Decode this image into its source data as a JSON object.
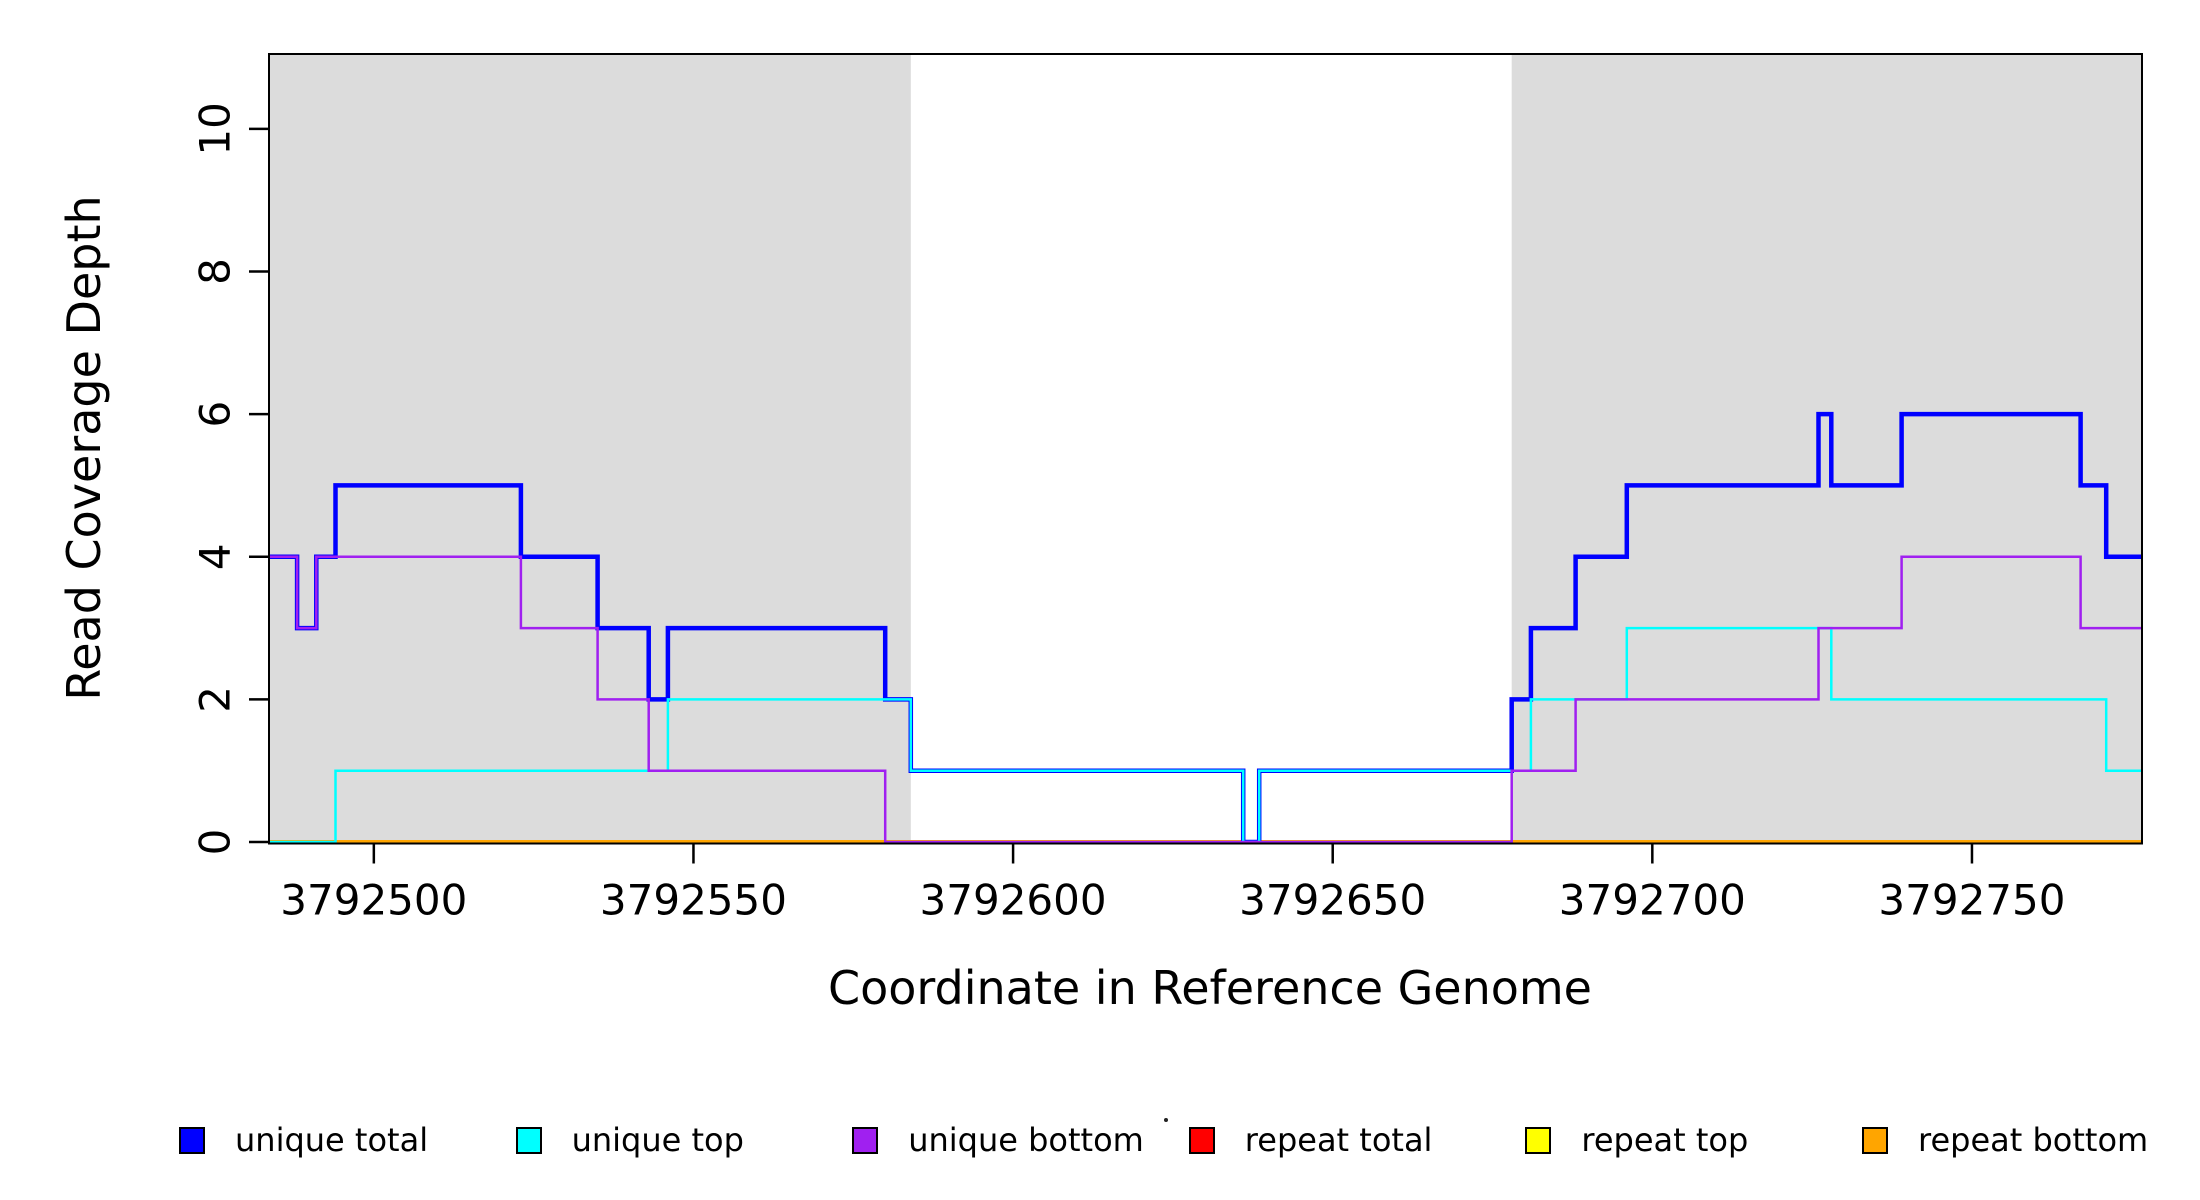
{
  "chart_data": {
    "type": "line",
    "subtype": "step-post",
    "title": "",
    "xlabel": "Coordinate in Reference Genome",
    "ylabel": "Read Coverage Depth",
    "xlim": [
      3792483.6,
      3792776.6
    ],
    "ylim": [
      0,
      11.05
    ],
    "x_ticks": [
      3792500,
      3792550,
      3792600,
      3792650,
      3792700,
      3792750
    ],
    "y_ticks": [
      0,
      2,
      4,
      6,
      8,
      10
    ],
    "grid": false,
    "background": "#ffffff",
    "shaded_region_color": "#dcdcdc",
    "shaded_regions": [
      {
        "x0": 3792483.6,
        "x1": 3792584.0
      },
      {
        "x0": 3792678.0,
        "x1": 3792776.6
      }
    ],
    "series": [
      {
        "name": "repeat total",
        "color": "#ff0000",
        "width": 4,
        "zorder": 1,
        "points": [
          [
            3792483.6,
            0
          ]
        ]
      },
      {
        "name": "repeat top",
        "color": "#ffff00",
        "width": 4,
        "zorder": 2,
        "points": [
          [
            3792483.6,
            0
          ]
        ]
      },
      {
        "name": "repeat bottom",
        "color": "#ffa500",
        "width": 4,
        "zorder": 3,
        "points": [
          [
            3792483.6,
            0
          ]
        ]
      },
      {
        "name": "unique total",
        "color": "#0000ff",
        "width": 4.5,
        "zorder": 4,
        "points": [
          [
            3792483.6,
            4
          ],
          [
            3792488,
            3
          ],
          [
            3792491,
            4
          ],
          [
            3792494,
            5
          ],
          [
            3792523,
            4
          ],
          [
            3792535,
            3
          ],
          [
            3792543,
            2
          ],
          [
            3792546,
            3
          ],
          [
            3792580,
            2
          ],
          [
            3792584,
            1
          ],
          [
            3792636,
            0
          ],
          [
            3792638.5,
            1
          ],
          [
            3792678,
            2
          ],
          [
            3792681,
            3
          ],
          [
            3792688,
            4
          ],
          [
            3792696,
            5
          ],
          [
            3792726,
            6
          ],
          [
            3792728,
            5
          ],
          [
            3792739,
            6
          ],
          [
            3792767,
            5
          ],
          [
            3792771,
            4
          ]
        ]
      },
      {
        "name": "unique top",
        "color": "#00ffff",
        "width": 2.5,
        "zorder": 5,
        "points": [
          [
            3792483.6,
            0
          ],
          [
            3792494,
            1
          ],
          [
            3792546,
            2
          ],
          [
            3792584,
            1
          ],
          [
            3792636,
            0
          ],
          [
            3792638.5,
            1
          ],
          [
            3792681,
            2
          ],
          [
            3792696,
            3
          ],
          [
            3792728,
            2
          ],
          [
            3792771,
            1
          ]
        ]
      },
      {
        "name": "unique bottom",
        "color": "#a020f0",
        "width": 2.5,
        "zorder": 6,
        "points": [
          [
            3792483.6,
            4
          ],
          [
            3792488,
            3
          ],
          [
            3792491,
            4
          ],
          [
            3792523,
            3
          ],
          [
            3792535,
            2
          ],
          [
            3792543,
            1
          ],
          [
            3792580,
            0
          ],
          [
            3792678,
            1
          ],
          [
            3792688,
            2
          ],
          [
            3792726,
            3
          ],
          [
            3792739,
            4
          ],
          [
            3792767,
            3
          ]
        ]
      }
    ]
  },
  "legend": {
    "items": [
      {
        "label": "unique total",
        "color": "#0000ff"
      },
      {
        "label": "unique top",
        "color": "#00ffff"
      },
      {
        "label": "unique bottom",
        "color": "#a020f0"
      },
      {
        "label": "repeat total",
        "color": "#ff0000"
      },
      {
        "label": "repeat top",
        "color": "#ffff00"
      },
      {
        "label": "repeat bottom",
        "color": "#ffa500"
      }
    ]
  },
  "axis": {
    "line_color": "#000000",
    "text_color": "#000000"
  }
}
